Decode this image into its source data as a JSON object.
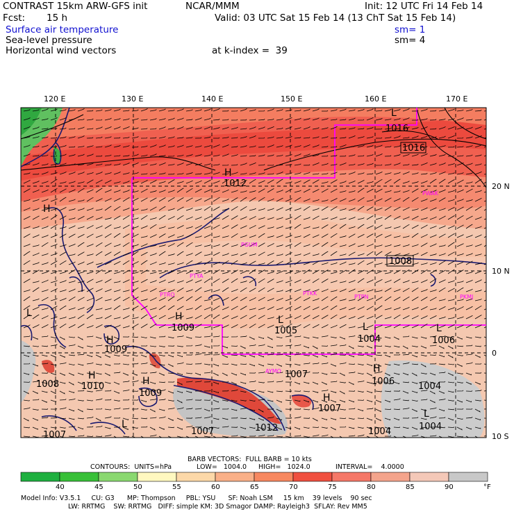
{
  "header": {
    "model": "CONTRAST 15km ARW-GFS init",
    "org": "NCAR/MMM",
    "init": "Init: 12 UTC Fri 14 Feb 14",
    "fcst_label": "Fcst:",
    "fcst_value": "15 h",
    "valid": "Valid: 03 UTC Sat 15 Feb 14 (13 ChT Sat 15 Feb 14)",
    "field1": "Surface air temperature",
    "field1_sm": "sm= 1",
    "field2": "Sea-level pressure",
    "field2_sm": "sm= 4",
    "field3": "Horizontal wind vectors",
    "k_index": "at k-index =  39"
  },
  "map": {
    "lon_labels": [
      "120 E",
      "130 E",
      "140 E",
      "150 E",
      "160 E",
      "170 E"
    ],
    "lat_labels": [
      "20 N",
      "10 N",
      "0",
      "10 S"
    ],
    "pressure_labels": [
      "1016",
      "1016",
      "1012",
      "1008",
      "1009",
      "1005",
      "1004",
      "1006",
      "1009",
      "1010",
      "1008",
      "1009",
      "1007",
      "1006",
      "1004",
      "1007",
      "1007",
      "1004",
      "1004",
      "1012",
      "1007"
    ],
    "highs": [
      "H",
      "H",
      "H",
      "H",
      "H",
      "H",
      "H",
      "H"
    ],
    "lows": [
      "L",
      "L",
      "L",
      "L",
      "L",
      "L",
      "L"
    ],
    "stations": [
      "PGUM",
      "PTYA",
      "PTRO",
      "PTKK",
      "PTPN",
      "PKMJ",
      "PWAK",
      "AYMO"
    ],
    "land_color": "#1a1a70",
    "box_color": "#ff00ff"
  },
  "footer": {
    "barb": "BARB VECTORS:  FULL BARB = 10 kts",
    "contours_label": "CONTOURS:  UNITS=hPa",
    "low": "LOW=   1004.0",
    "high": "HIGH=   1024.0",
    "interval": "INTERVAL=    4.0000",
    "scale_ticks": [
      "40",
      "45",
      "50",
      "55",
      "60",
      "65",
      "70",
      "75",
      "80",
      "85",
      "90"
    ],
    "unit": "°F",
    "scale_colors": [
      "#1fb040",
      "#38c038",
      "#8ad870",
      "#fff8c0",
      "#fcd8a8",
      "#f9b088",
      "#f78860",
      "#f05040",
      "#f57868",
      "#f4a48c",
      "#f4c8b8",
      "#c8c8c8"
    ],
    "info_line1": "Model Info: V3.5.1     CU: G3      MP: Thompson     PBL: YSU      SF: Noah LSM     15 km    39 levels    90 sec",
    "info_line2": "LW: RRTMG    SW: RRTMG   DIFF: simple KM: 3D Smagor DAMP: Rayleigh3  SFLAY: Rev MM5"
  }
}
